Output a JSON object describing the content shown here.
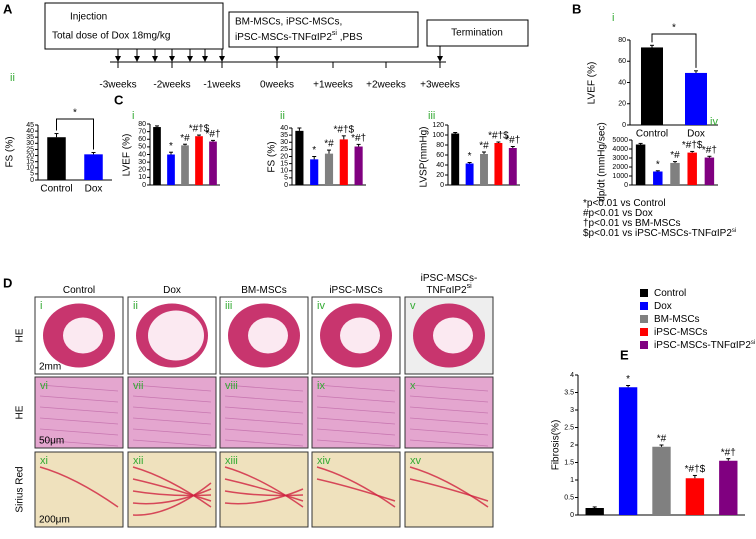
{
  "panel_labels": [
    "A",
    "B",
    "C",
    "D",
    "E"
  ],
  "timeline": {
    "boxes": [
      {
        "lines": [
          "Injection",
          "Total dose of Dox 18mg/kg"
        ]
      },
      {
        "lines": [
          "BM-MSCs, iPSC-MSCs,",
          "iPSC-MSCs-TNFαIP2"
        ],
        "superscript": "si",
        "suffix": " ,PBS"
      },
      {
        "lines": [
          "Termination"
        ]
      }
    ],
    "weeks": [
      "-3weeks",
      "-2weeks",
      "-1weeks",
      "0weeks",
      "+1weeks",
      "+2weeks",
      "+3weeks"
    ]
  },
  "chart_data": [
    {
      "type": "bar",
      "sublabel": "i",
      "ylabel": "LVEF (%)",
      "categories": [
        "Control",
        "Dox"
      ],
      "values": [
        73,
        49
      ],
      "errors": [
        2,
        2
      ],
      "colors": [
        "#000000",
        "#0000ff"
      ],
      "significance": "*",
      "ylim": [
        0,
        80
      ],
      "yticks": [
        0,
        20,
        40,
        60,
        80
      ]
    },
    {
      "type": "bar",
      "sublabel": "ii",
      "ylabel": "FS (%)",
      "categories": [
        "Control",
        "Dox"
      ],
      "values": [
        35,
        21
      ],
      "errors": [
        3,
        1.5
      ],
      "colors": [
        "#000000",
        "#0000ff"
      ],
      "significance": "*",
      "ylim": [
        0,
        45
      ],
      "yticks": [
        0,
        5,
        10,
        15,
        20,
        25,
        30,
        35,
        40,
        45
      ]
    },
    {
      "type": "bar",
      "sublabel": "i",
      "ylabel": "LVEF (%)",
      "values": [
        76,
        40,
        52,
        64,
        57
      ],
      "errors": [
        1.5,
        3,
        1.5,
        1.5,
        1.5
      ],
      "colors": [
        "#000000",
        "#0000ff",
        "#808080",
        "#ff0000",
        "#800080"
      ],
      "annotations": [
        "",
        "*",
        "*#",
        "*#†$",
        "*#†"
      ],
      "ylim": [
        0,
        80
      ],
      "yticks": [
        0,
        10,
        20,
        30,
        40,
        50,
        60,
        70,
        80
      ]
    },
    {
      "type": "bar",
      "sublabel": "ii",
      "ylabel": "FS (%)",
      "values": [
        38,
        18,
        22,
        32,
        27
      ],
      "errors": [
        2,
        2,
        2.5,
        2.5,
        1.5
      ],
      "colors": [
        "#000000",
        "#0000ff",
        "#808080",
        "#ff0000",
        "#800080"
      ],
      "annotations": [
        "",
        "*",
        "*#",
        "*#†$",
        "*#†"
      ],
      "ylim": [
        0,
        40
      ],
      "yticks": [
        0,
        5,
        10,
        15,
        20,
        25,
        30,
        35,
        40
      ]
    },
    {
      "type": "bar",
      "sublabel": "iii",
      "ylabel": "LVSP(mmHg)",
      "values": [
        103,
        43,
        62,
        84,
        74
      ],
      "errors": [
        2,
        2,
        4,
        2,
        3
      ],
      "colors": [
        "#000000",
        "#0000ff",
        "#808080",
        "#ff0000",
        "#800080"
      ],
      "annotations": [
        "",
        "*",
        "*#",
        "*#†$",
        "*#†"
      ],
      "ylim": [
        0,
        120
      ],
      "yticks": [
        0,
        20,
        40,
        60,
        80,
        100,
        120
      ]
    },
    {
      "type": "bar",
      "sublabel": "iv",
      "ylabel": "dp/dt (mmHg/sec)",
      "values": [
        4500,
        1500,
        2450,
        3600,
        3050
      ],
      "errors": [
        120,
        80,
        150,
        130,
        140
      ],
      "colors": [
        "#000000",
        "#0000ff",
        "#808080",
        "#ff0000",
        "#800080"
      ],
      "annotations": [
        "",
        "*",
        "*#",
        "*#†$",
        "*#†"
      ],
      "ylim": [
        0,
        5000
      ],
      "yticks": [
        0,
        1000,
        2000,
        3000,
        4000,
        5000
      ]
    },
    {
      "type": "bar",
      "ylabel": "Fibrosis(%)",
      "values": [
        0.2,
        3.65,
        1.95,
        1.05,
        1.55
      ],
      "errors": [
        0.03,
        0.05,
        0.05,
        0.08,
        0.06
      ],
      "colors": [
        "#000000",
        "#0000ff",
        "#808080",
        "#ff0000",
        "#800080"
      ],
      "annotations": [
        "",
        "*",
        "*#",
        "*#†$",
        "*#†"
      ],
      "ylim": [
        0,
        4
      ],
      "yticks": [
        0,
        0.5,
        1,
        1.5,
        2,
        2.5,
        3,
        3.5,
        4
      ]
    }
  ],
  "footnotes": [
    {
      "text": "*p<0.01 vs Control"
    },
    {
      "text": "#p<0.01 vs Dox"
    },
    {
      "text": "†p<0.01 vs BM-MSCs"
    },
    {
      "text": "$p<0.01 vs iPSC-MSCs-TNFαIP2",
      "superscript": "si"
    }
  ],
  "legend": [
    {
      "name": "Control",
      "color": "#000000"
    },
    {
      "name": "Dox",
      "color": "#0000ff"
    },
    {
      "name": "BM-MSCs",
      "color": "#808080"
    },
    {
      "name": "iPSC-MSCs",
      "color": "#ff0000"
    },
    {
      "name": "iPSC-MSCs-TNFαIP2",
      "superscript": "si",
      "color": "#800080"
    }
  ],
  "histology": {
    "columns": [
      {
        "lines": [
          "Control"
        ]
      },
      {
        "lines": [
          "Dox"
        ]
      },
      {
        "lines": [
          "BM-MSCs"
        ]
      },
      {
        "lines": [
          "iPSC-MSCs"
        ]
      },
      {
        "lines": [
          "iPSC-MSCs-",
          "TNFαIP2"
        ],
        "superscript": "si"
      }
    ],
    "rows": [
      "HE",
      "HE",
      "Sirius Red"
    ],
    "numerals": [
      "i",
      "ii",
      "iii",
      "iv",
      "v",
      "vi",
      "vii",
      "viii",
      "ix",
      "x",
      "xi",
      "xii",
      "xiii",
      "xiv",
      "xv"
    ],
    "scale_bars": [
      "2mm",
      "50μm",
      "200μm"
    ]
  }
}
